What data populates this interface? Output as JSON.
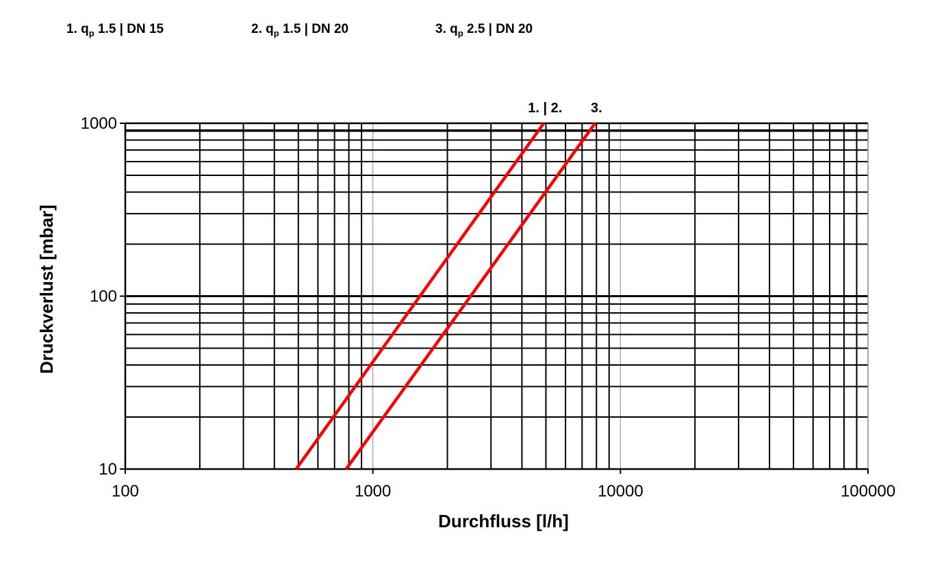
{
  "legend": [
    {
      "num": "1.",
      "q": "q",
      "sub": "p",
      "rest": "1.5 | DN 15"
    },
    {
      "num": "2.",
      "q": "q",
      "sub": "p",
      "rest": "1.5 | DN 20"
    },
    {
      "num": "3.",
      "q": "q",
      "sub": "p",
      "rest": "2.5 | DN 20"
    }
  ],
  "chart_data": {
    "type": "line",
    "xscale": "log",
    "yscale": "log",
    "xlim": [
      100,
      100000
    ],
    "ylim": [
      10,
      1000
    ],
    "xlabel": "Durchfluss [l/h]",
    "ylabel": "Druckverlust [mbar]",
    "x_ticks": [
      "100",
      "1000",
      "10000",
      "100000"
    ],
    "y_ticks": [
      "10",
      "100",
      "1000"
    ],
    "grid": true,
    "line_color": "#ff0000",
    "series": [
      {
        "label": "1. | 2.",
        "points": [
          [
            490,
            10
          ],
          [
            4900,
            1000
          ]
        ]
      },
      {
        "label": "3.",
        "points": [
          [
            780,
            10
          ],
          [
            7900,
            1000
          ]
        ]
      }
    ]
  }
}
